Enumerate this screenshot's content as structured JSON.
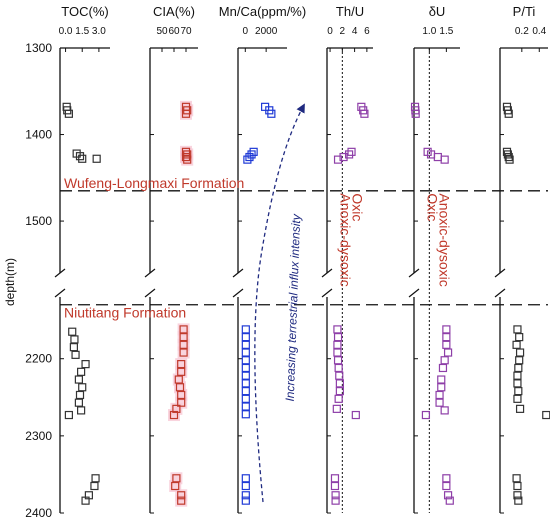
{
  "chart_data": {
    "type": "scatter",
    "layout": "multi-panel depth profile",
    "ylabel": "depth(m)",
    "y_inverted": true,
    "y_axis_break": [
      1560,
      2120
    ],
    "y_ticks": [
      1300,
      1400,
      1500,
      2200,
      2300,
      2400
    ],
    "formation_boundaries": [
      {
        "name": "Wufeng-Longmaxi Formation",
        "depth": 1465
      },
      {
        "name": "Niutitang Formation",
        "depth": 2130
      }
    ],
    "arrow_label": "Increasing terrestrial influx intensity",
    "panels": [
      {
        "id": "toc",
        "title": "TOC(%)",
        "xlim": [
          -0.5,
          4.0
        ],
        "tick_labels": [
          "0.0",
          "1.5",
          "3.0"
        ],
        "tick_values": [
          0.0,
          1.5,
          3.0
        ],
        "marker_color": "#333333",
        "highlight": false,
        "points": [
          {
            "x": 0.1,
            "depth": 1368
          },
          {
            "x": 0.15,
            "depth": 1372
          },
          {
            "x": 0.3,
            "depth": 1376
          },
          {
            "x": 1.0,
            "depth": 1422
          },
          {
            "x": 1.3,
            "depth": 1425
          },
          {
            "x": 1.5,
            "depth": 1428
          },
          {
            "x": 2.8,
            "depth": 1428
          },
          {
            "x": 0.6,
            "depth": 2165
          },
          {
            "x": 0.8,
            "depth": 2175
          },
          {
            "x": 0.75,
            "depth": 2185
          },
          {
            "x": 0.9,
            "depth": 2195
          },
          {
            "x": 1.8,
            "depth": 2207
          },
          {
            "x": 1.4,
            "depth": 2217
          },
          {
            "x": 1.2,
            "depth": 2227
          },
          {
            "x": 1.5,
            "depth": 2237
          },
          {
            "x": 1.3,
            "depth": 2247
          },
          {
            "x": 1.2,
            "depth": 2257
          },
          {
            "x": 1.4,
            "depth": 2267
          },
          {
            "x": 0.3,
            "depth": 2273
          },
          {
            "x": 2.7,
            "depth": 2355
          },
          {
            "x": 2.6,
            "depth": 2365
          },
          {
            "x": 2.1,
            "depth": 2377
          },
          {
            "x": 1.8,
            "depth": 2384
          }
        ]
      },
      {
        "id": "cia",
        "title": "CIA(%)",
        "xlim": [
          40,
          80
        ],
        "tick_labels": [
          "50",
          "60",
          "70"
        ],
        "tick_values": [
          50,
          60,
          70
        ],
        "marker_color": "#c0392b",
        "highlight": true,
        "points": [
          {
            "x": 70,
            "depth": 1368
          },
          {
            "x": 71,
            "depth": 1372
          },
          {
            "x": 70,
            "depth": 1376
          },
          {
            "x": 70,
            "depth": 1420
          },
          {
            "x": 71,
            "depth": 1423
          },
          {
            "x": 70,
            "depth": 1426
          },
          {
            "x": 71,
            "depth": 1429
          },
          {
            "x": 68,
            "depth": 2162
          },
          {
            "x": 68,
            "depth": 2172
          },
          {
            "x": 68,
            "depth": 2182
          },
          {
            "x": 68,
            "depth": 2192
          },
          {
            "x": 66,
            "depth": 2207
          },
          {
            "x": 66,
            "depth": 2217
          },
          {
            "x": 64,
            "depth": 2227
          },
          {
            "x": 65,
            "depth": 2237
          },
          {
            "x": 66,
            "depth": 2247
          },
          {
            "x": 66,
            "depth": 2257
          },
          {
            "x": 62,
            "depth": 2265
          },
          {
            "x": 60,
            "depth": 2273
          },
          {
            "x": 62,
            "depth": 2355
          },
          {
            "x": 61,
            "depth": 2365
          },
          {
            "x": 66,
            "depth": 2377
          },
          {
            "x": 66,
            "depth": 2384
          }
        ]
      },
      {
        "id": "mnca",
        "title": "Mn/Ca(ppm/%)",
        "xlim": [
          -700,
          4000
        ],
        "tick_labels": [
          "0",
          "2000"
        ],
        "tick_values": [
          0,
          2000
        ],
        "marker_color": "#1f3ad6",
        "highlight": false,
        "points": [
          {
            "x": 1900,
            "depth": 1368
          },
          {
            "x": 2300,
            "depth": 1372
          },
          {
            "x": 2500,
            "depth": 1376
          },
          {
            "x": 800,
            "depth": 1420
          },
          {
            "x": 600,
            "depth": 1423
          },
          {
            "x": 400,
            "depth": 1426
          },
          {
            "x": 200,
            "depth": 1429
          },
          {
            "x": 50,
            "depth": 2162
          },
          {
            "x": 50,
            "depth": 2172
          },
          {
            "x": 50,
            "depth": 2182
          },
          {
            "x": 50,
            "depth": 2192
          },
          {
            "x": 50,
            "depth": 2202
          },
          {
            "x": 50,
            "depth": 2212
          },
          {
            "x": 50,
            "depth": 2222
          },
          {
            "x": 50,
            "depth": 2232
          },
          {
            "x": 50,
            "depth": 2242
          },
          {
            "x": 50,
            "depth": 2252
          },
          {
            "x": 50,
            "depth": 2262
          },
          {
            "x": 50,
            "depth": 2272
          },
          {
            "x": 50,
            "depth": 2355
          },
          {
            "x": 50,
            "depth": 2365
          },
          {
            "x": 50,
            "depth": 2377
          },
          {
            "x": 50,
            "depth": 2384
          }
        ]
      },
      {
        "id": "thu",
        "title": "Th/U",
        "xlim": [
          -0.5,
          7.0
        ],
        "tick_labels": [
          "0",
          "2",
          "4",
          "6"
        ],
        "tick_values": [
          0,
          2,
          4,
          6
        ],
        "marker_color": "#8e3fa8",
        "highlight": false,
        "reference_line": 2.0,
        "redox_labels": [
          "Oxic",
          "Anoxic-dysoxic"
        ],
        "points": [
          {
            "x": 5.1,
            "depth": 1368
          },
          {
            "x": 5.4,
            "depth": 1372
          },
          {
            "x": 5.6,
            "depth": 1376
          },
          {
            "x": 3.5,
            "depth": 1420
          },
          {
            "x": 3.1,
            "depth": 1423
          },
          {
            "x": 2.2,
            "depth": 1426
          },
          {
            "x": 1.3,
            "depth": 1429
          },
          {
            "x": 1.2,
            "depth": 2162
          },
          {
            "x": 1.3,
            "depth": 2172
          },
          {
            "x": 1.2,
            "depth": 2182
          },
          {
            "x": 1.2,
            "depth": 2192
          },
          {
            "x": 1.3,
            "depth": 2202
          },
          {
            "x": 1.4,
            "depth": 2212
          },
          {
            "x": 1.5,
            "depth": 2222
          },
          {
            "x": 1.6,
            "depth": 2232
          },
          {
            "x": 1.6,
            "depth": 2242
          },
          {
            "x": 1.4,
            "depth": 2252
          },
          {
            "x": 1.1,
            "depth": 2265
          },
          {
            "x": 4.2,
            "depth": 2273
          },
          {
            "x": 0.8,
            "depth": 2355
          },
          {
            "x": 0.8,
            "depth": 2365
          },
          {
            "x": 0.9,
            "depth": 2377
          },
          {
            "x": 0.9,
            "depth": 2384
          }
        ]
      },
      {
        "id": "du",
        "title": "δU",
        "xlim": [
          0.55,
          1.9
        ],
        "tick_labels": [
          "1.0",
          "1.5"
        ],
        "tick_values": [
          1.0,
          1.5
        ],
        "marker_color": "#8e3fa8",
        "highlight": false,
        "reference_line": 1.0,
        "redox_labels": [
          "Anoxic-dysoxic",
          "Oxic"
        ],
        "points": [
          {
            "x": 0.58,
            "depth": 1368
          },
          {
            "x": 0.59,
            "depth": 1372
          },
          {
            "x": 0.6,
            "depth": 1376
          },
          {
            "x": 0.95,
            "depth": 1420
          },
          {
            "x": 1.05,
            "depth": 1423
          },
          {
            "x": 1.25,
            "depth": 1426
          },
          {
            "x": 1.45,
            "depth": 1429
          },
          {
            "x": 1.5,
            "depth": 2162
          },
          {
            "x": 1.5,
            "depth": 2172
          },
          {
            "x": 1.5,
            "depth": 2182
          },
          {
            "x": 1.55,
            "depth": 2192
          },
          {
            "x": 1.45,
            "depth": 2202
          },
          {
            "x": 1.4,
            "depth": 2212
          },
          {
            "x": 1.35,
            "depth": 2227
          },
          {
            "x": 1.35,
            "depth": 2237
          },
          {
            "x": 1.3,
            "depth": 2247
          },
          {
            "x": 1.3,
            "depth": 2257
          },
          {
            "x": 1.45,
            "depth": 2267
          },
          {
            "x": 0.9,
            "depth": 2273
          },
          {
            "x": 1.5,
            "depth": 2355
          },
          {
            "x": 1.5,
            "depth": 2365
          },
          {
            "x": 1.55,
            "depth": 2377
          },
          {
            "x": 1.6,
            "depth": 2384
          }
        ]
      },
      {
        "id": "pti",
        "title": "P/Ti",
        "xlim": [
          -0.05,
          0.5
        ],
        "tick_labels": [
          "0.2",
          "0.4"
        ],
        "tick_values": [
          0.2,
          0.4
        ],
        "marker_color": "#333333",
        "highlight": false,
        "points": [
          {
            "x": 0.03,
            "depth": 1368
          },
          {
            "x": 0.04,
            "depth": 1372
          },
          {
            "x": 0.05,
            "depth": 1376
          },
          {
            "x": 0.03,
            "depth": 1420
          },
          {
            "x": 0.04,
            "depth": 1423
          },
          {
            "x": 0.05,
            "depth": 1426
          },
          {
            "x": 0.06,
            "depth": 1429
          },
          {
            "x": 0.15,
            "depth": 2162
          },
          {
            "x": 0.17,
            "depth": 2172
          },
          {
            "x": 0.14,
            "depth": 2182
          },
          {
            "x": 0.18,
            "depth": 2192
          },
          {
            "x": 0.17,
            "depth": 2202
          },
          {
            "x": 0.16,
            "depth": 2212
          },
          {
            "x": 0.15,
            "depth": 2222
          },
          {
            "x": 0.15,
            "depth": 2232
          },
          {
            "x": 0.16,
            "depth": 2242
          },
          {
            "x": 0.15,
            "depth": 2252
          },
          {
            "x": 0.18,
            "depth": 2265
          },
          {
            "x": 0.48,
            "depth": 2273
          },
          {
            "x": 0.14,
            "depth": 2355
          },
          {
            "x": 0.15,
            "depth": 2365
          },
          {
            "x": 0.15,
            "depth": 2377
          },
          {
            "x": 0.16,
            "depth": 2384
          }
        ]
      }
    ]
  }
}
